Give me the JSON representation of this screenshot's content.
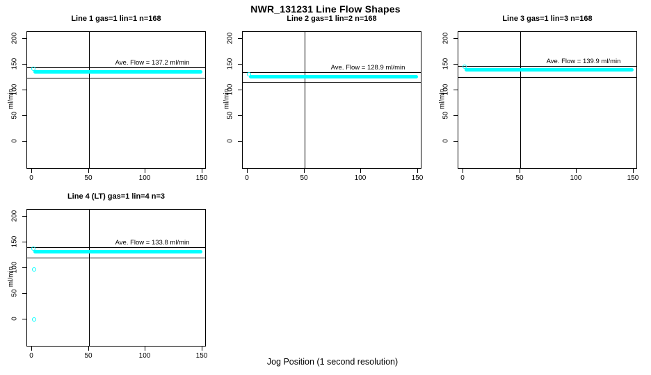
{
  "main_title": "NWR_131231  Line Flow Shapes",
  "x_axis_title": "Jog Position (1 second resolution)",
  "axes": {
    "ylabel": "ml/min",
    "xtick_labels": [
      "0",
      "50",
      "100",
      "150"
    ],
    "ytick_labels": [
      "0",
      "50",
      "100",
      "150",
      "200"
    ]
  },
  "colors": {
    "points": "#00FFFF",
    "lines": "#000000",
    "background": "#FFFFFF",
    "text": "#000000"
  },
  "chart_data": [
    {
      "type": "scatter",
      "title": "Line 1 gas=1 lin=1 n=168",
      "ave_flow_text": "Ave. Flow =  137.2  ml/min",
      "ave_flow": 137.2,
      "n": 168,
      "ylabel": "ml/min",
      "xticks": [
        0,
        50,
        100,
        150
      ],
      "yticks": [
        0,
        50,
        100,
        150,
        200
      ],
      "vline_x": 50,
      "ref_line_upper": 144.1,
      "ref_line_lower": 123.5,
      "band": {
        "x_start": 1,
        "x_end": 150,
        "y": 136
      },
      "lead_points": [
        [
          1,
          142
        ]
      ],
      "outliers": []
    },
    {
      "type": "scatter",
      "title": "Line 2 gas=1 lin=2 n=168",
      "ave_flow_text": "Ave. Flow =  128.9  ml/min",
      "ave_flow": 128.9,
      "n": 168,
      "ylabel": "ml/min",
      "xticks": [
        0,
        50,
        100,
        150
      ],
      "yticks": [
        0,
        50,
        100,
        150,
        200
      ],
      "vline_x": 50,
      "ref_line_upper": 135.3,
      "ref_line_lower": 116.0,
      "band": {
        "x_start": 1,
        "x_end": 150,
        "y": 126
      },
      "lead_points": [
        [
          1,
          131
        ]
      ],
      "outliers": []
    },
    {
      "type": "scatter",
      "title": "Line 3 gas=1 lin=3 n=168",
      "ave_flow_text": "Ave. Flow =  139.9  ml/min",
      "ave_flow": 139.9,
      "n": 168,
      "ylabel": "ml/min",
      "xticks": [
        0,
        50,
        100,
        150
      ],
      "yticks": [
        0,
        50,
        100,
        150,
        200
      ],
      "vline_x": 50,
      "ref_line_upper": 146.9,
      "ref_line_lower": 125.9,
      "band": {
        "x_start": 1,
        "x_end": 150,
        "y": 139
      },
      "lead_points": [
        [
          1,
          145
        ]
      ],
      "outliers": []
    },
    {
      "type": "scatter",
      "title": "Line 4 (LT) gas=1 lin=4 n=3",
      "ave_flow_text": "Ave. Flow =  133.8  ml/min",
      "ave_flow": 133.8,
      "n": 3,
      "ylabel": "ml/min",
      "xticks": [
        0,
        50,
        100,
        150
      ],
      "yticks": [
        0,
        50,
        100,
        150,
        200
      ],
      "vline_x": 50,
      "ref_line_upper": 140.5,
      "ref_line_lower": 120.4,
      "band": {
        "x_start": 1,
        "x_end": 150,
        "y": 132
      },
      "lead_points": [
        [
          1,
          138
        ]
      ],
      "outliers": [
        [
          2,
          97
        ],
        [
          2,
          0
        ]
      ]
    }
  ]
}
